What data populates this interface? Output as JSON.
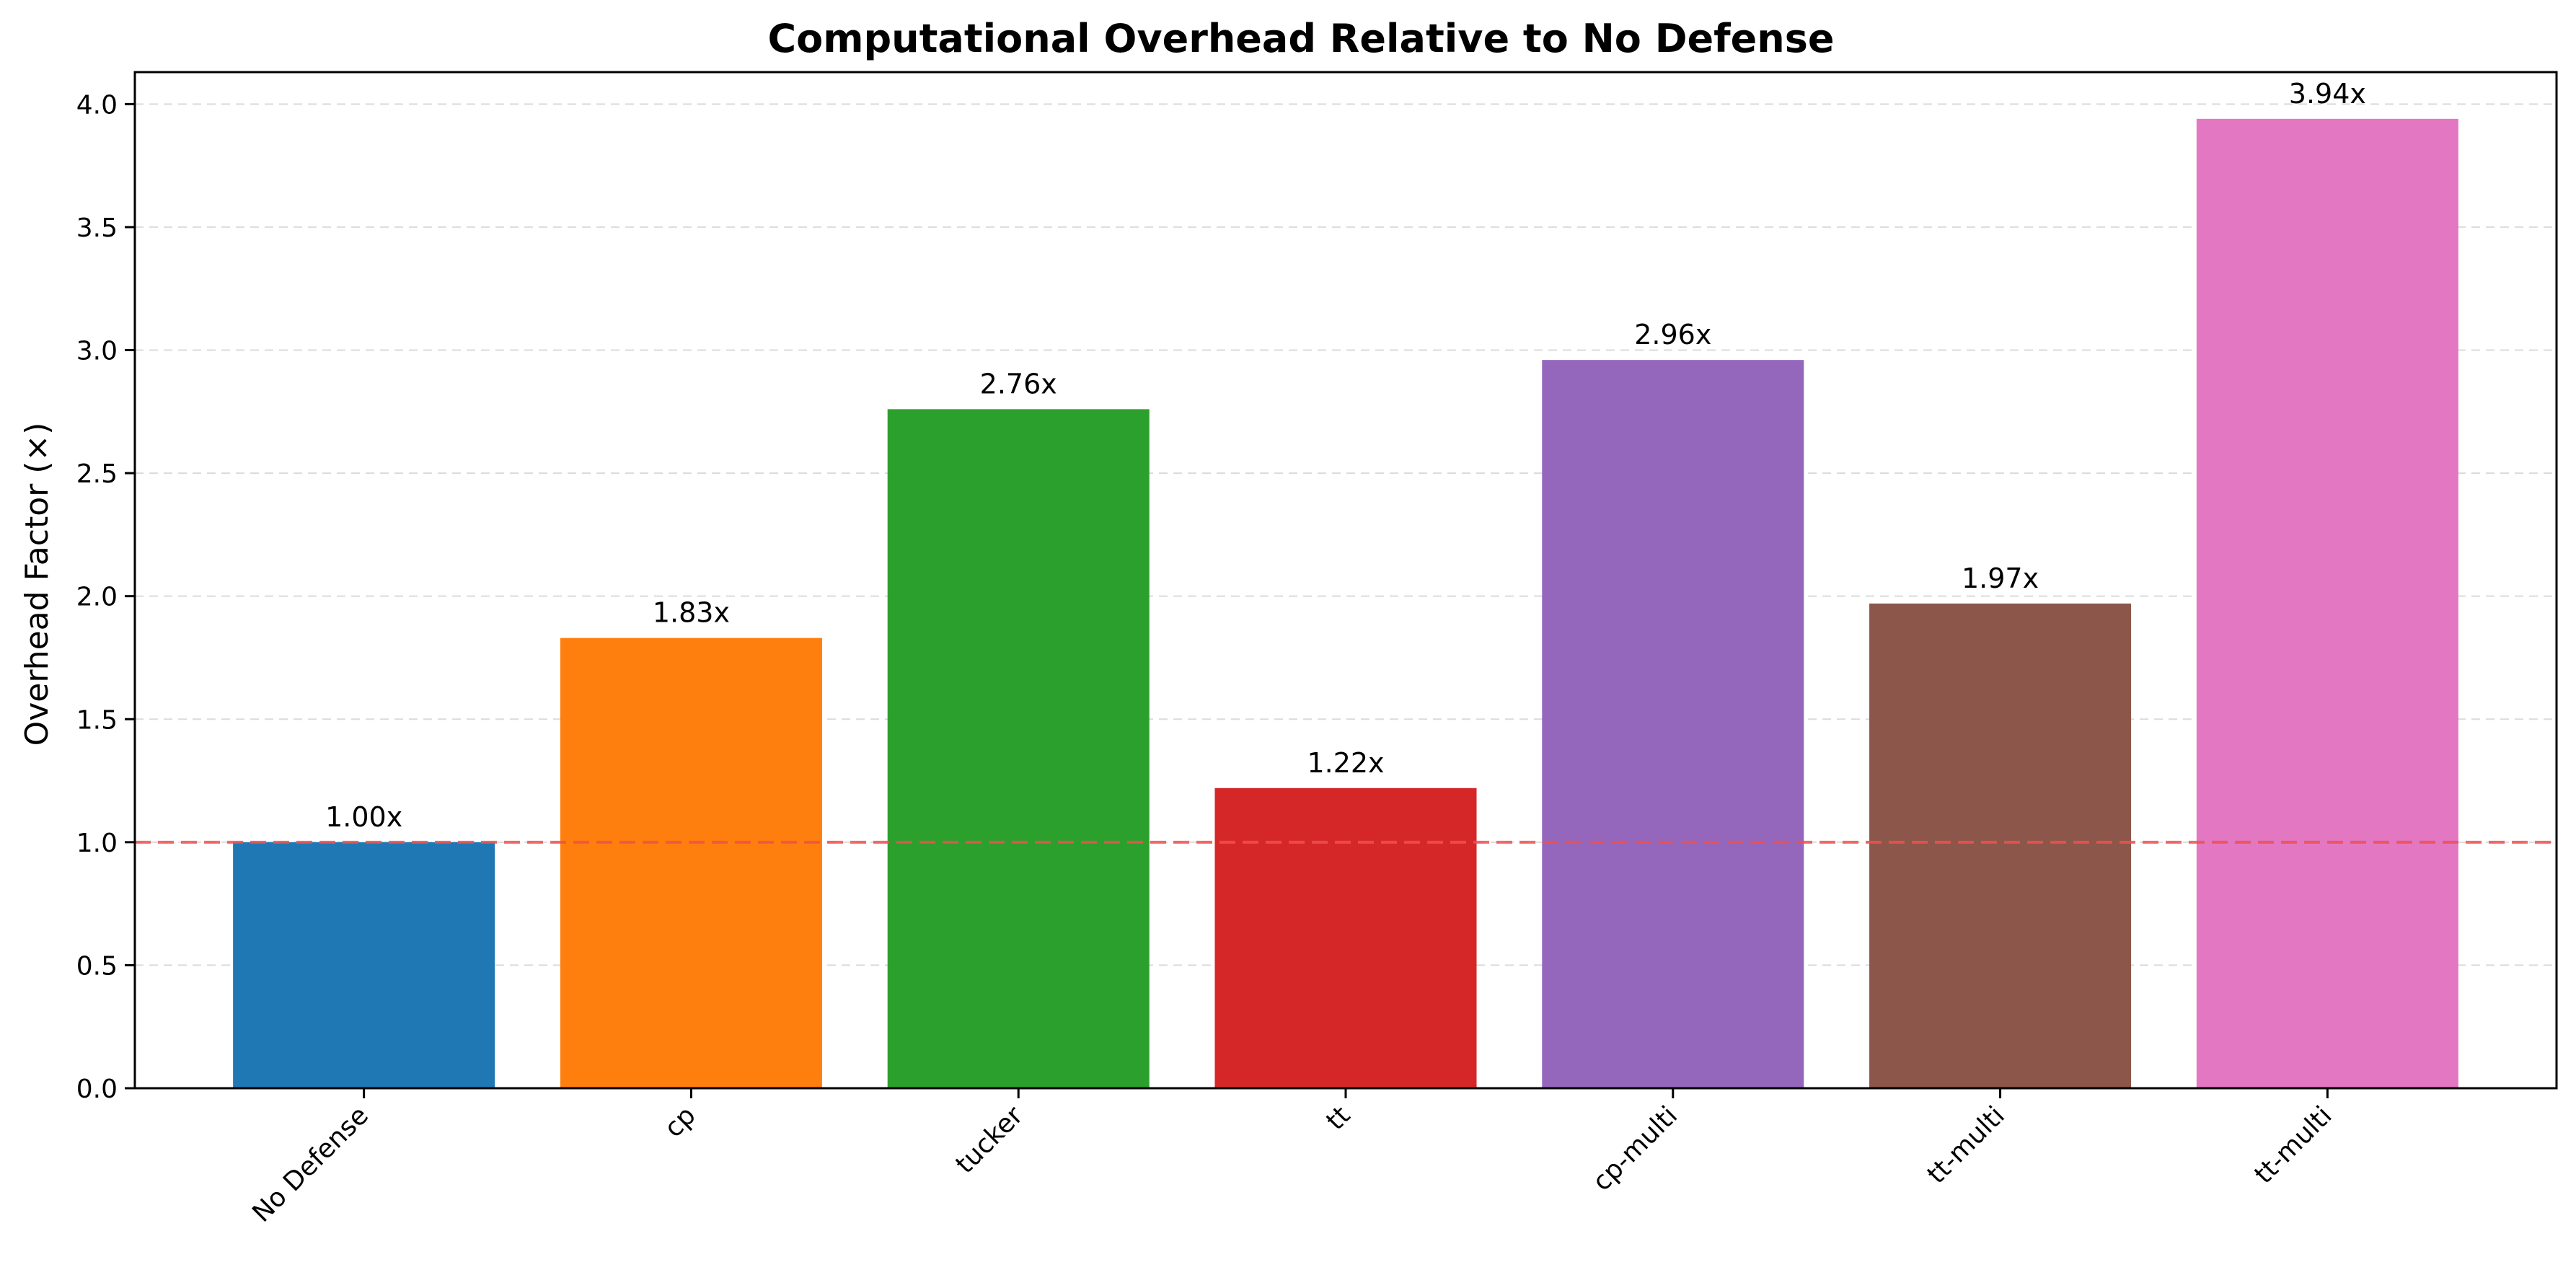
{
  "chart_data": {
    "type": "bar",
    "title": "Computational Overhead Relative to No Defense",
    "xlabel": "",
    "ylabel": "Overhead Factor (×)",
    "categories": [
      "No Defense",
      "cp",
      "tucker",
      "tt",
      "cp-multi",
      "tt-multi",
      "tt-multi"
    ],
    "values": [
      1.0,
      1.83,
      2.76,
      1.22,
      2.96,
      1.97,
      3.94
    ],
    "value_labels": [
      "1.00x",
      "1.83x",
      "2.76x",
      "1.22x",
      "2.96x",
      "1.97x",
      "3.94x"
    ],
    "colors": [
      "#1f77b4",
      "#ff7f0e",
      "#2ca02c",
      "#d62728",
      "#9467bd",
      "#8c564b",
      "#e377c2"
    ],
    "ylim": [
      0,
      4.13
    ],
    "yticks": [
      0.0,
      0.5,
      1.0,
      1.5,
      2.0,
      2.5,
      3.0,
      3.5,
      4.0
    ],
    "ytick_labels": [
      "0.0",
      "0.5",
      "1.0",
      "1.5",
      "2.0",
      "2.5",
      "3.0",
      "3.5",
      "4.0"
    ],
    "grid": "y-dashed",
    "reference_line": {
      "value": 1.0,
      "color": "#f0504f",
      "style": "dashed"
    },
    "legend": "none"
  }
}
